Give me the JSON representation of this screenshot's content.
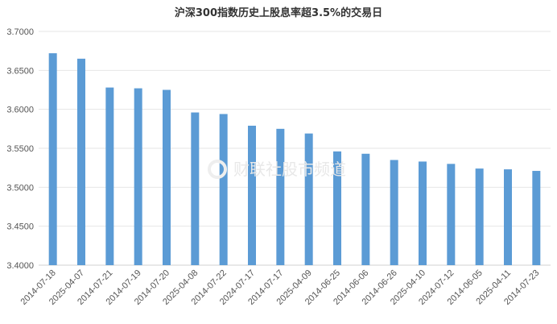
{
  "chart_data": {
    "type": "bar",
    "title": "沪深300指数历史上股息率超3.5%的交易日",
    "xlabel": "",
    "ylabel": "",
    "ylim": [
      3.4,
      3.7
    ],
    "yticks": [
      "3.4000",
      "3.4500",
      "3.5000",
      "3.5500",
      "3.6000",
      "3.6500",
      "3.7000"
    ],
    "grid": true,
    "legend": "none",
    "bar_color": "#5b9bd5",
    "categories": [
      "2014-07-18",
      "2025-04-07",
      "2014-07-21",
      "2014-07-19",
      "2014-07-20",
      "2025-04-08",
      "2014-07-22",
      "2024-07-17",
      "2014-07-17",
      "2025-04-09",
      "2014-06-25",
      "2014-06-06",
      "2014-06-26",
      "2025-04-10",
      "2024-07-12",
      "2014-06-05",
      "2025-04-11",
      "2014-07-23"
    ],
    "values": [
      3.672,
      3.665,
      3.628,
      3.627,
      3.625,
      3.596,
      3.594,
      3.579,
      3.575,
      3.569,
      3.546,
      3.543,
      3.535,
      3.533,
      3.53,
      3.524,
      3.523,
      3.521
    ]
  },
  "watermark": {
    "text": "财联社股市频道",
    "icon": "cailian-logo-icon"
  }
}
